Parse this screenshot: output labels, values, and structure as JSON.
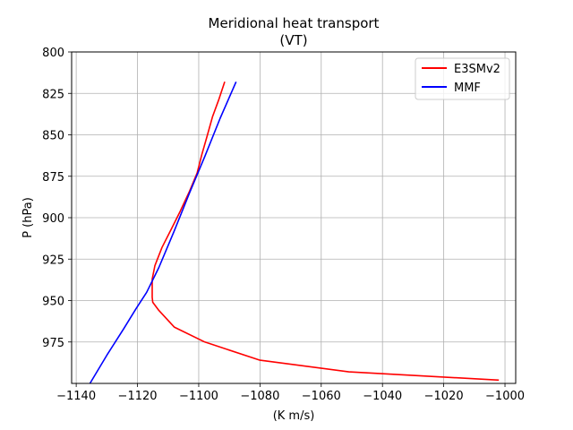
{
  "chart_data": {
    "type": "line",
    "title": "Meridional heat transport",
    "subtitle": "(VT)",
    "xlabel": "(K m/s)",
    "ylabel": "P (hPa)",
    "xlim": [
      -1141.5,
      -996.5
    ],
    "ylim": [
      1000,
      800
    ],
    "xticks": [
      -1140,
      -1120,
      -1100,
      -1080,
      -1060,
      -1040,
      -1020,
      -1000
    ],
    "xtick_labels": [
      "−1140",
      "−1120",
      "−1100",
      "−1080",
      "−1060",
      "−1040",
      "−1020",
      "−1000"
    ],
    "yticks": [
      800,
      825,
      850,
      875,
      900,
      925,
      950,
      975
    ],
    "ytick_labels": [
      "800",
      "825",
      "850",
      "875",
      "900",
      "925",
      "950",
      "975"
    ],
    "grid": true,
    "legend_position": "top-right",
    "series": [
      {
        "name": "E3SMv2",
        "color": "#ff0000",
        "x": [
          -1091.5,
          -1093.5,
          -1095.5,
          -1097.3,
          -1099,
          -1100.5,
          -1103,
          -1106,
          -1109,
          -1112,
          -1114.3,
          -1115.2,
          -1115.2,
          -1115,
          -1113,
          -1108,
          -1098,
          -1080,
          -1051,
          -1002
        ],
        "y": [
          818,
          829,
          839,
          851,
          862,
          873,
          884,
          896,
          907,
          918,
          929,
          937,
          948,
          951,
          956,
          966,
          975,
          986,
          993,
          998
        ]
      },
      {
        "name": "MMF",
        "color": "#0000ff",
        "x": [
          -1087.8,
          -1093,
          -1098,
          -1103,
          -1108,
          -1113,
          -1117,
          -1120.5,
          -1124.5,
          -1130,
          -1135.5
        ],
        "y": [
          818,
          840,
          863,
          885,
          908,
          930,
          945,
          955,
          967,
          983,
          1000
        ]
      }
    ]
  }
}
